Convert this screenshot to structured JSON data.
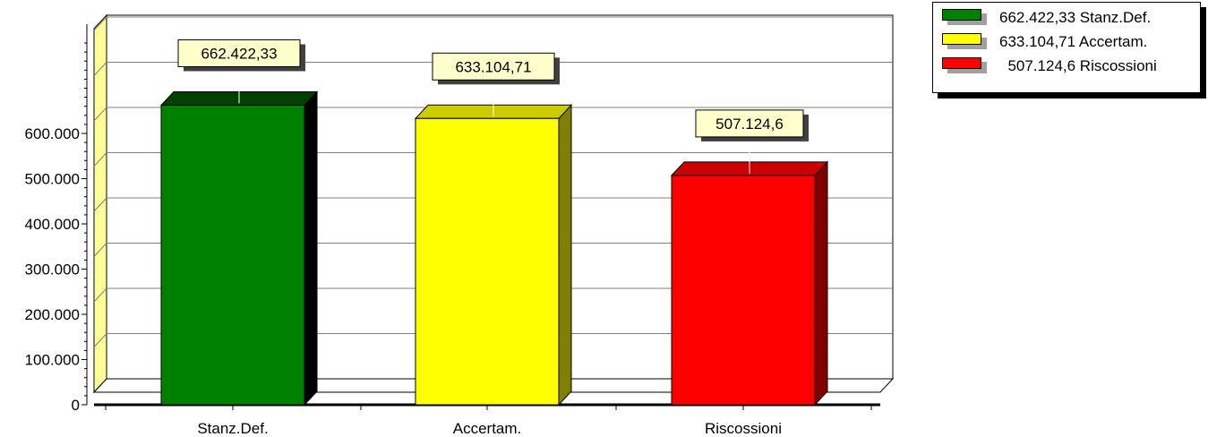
{
  "chart_data": {
    "type": "bar",
    "categories": [
      "Stanz.Def.",
      "Accertam.",
      "Riscossioni"
    ],
    "values": [
      662422.33,
      633104.71,
      507124.6
    ],
    "data_labels": [
      "662.422,33",
      "633.104,71",
      "507.124,6"
    ],
    "colors": [
      "#008000",
      "#ffff00",
      "#ff0000"
    ],
    "y_ticks": [
      "0",
      "100.000",
      "200.000",
      "300.000",
      "400.000",
      "500.000",
      "600.000"
    ],
    "ylim": [
      0,
      800000
    ],
    "grid": true,
    "three_d": true,
    "legend_position": "top-right",
    "legend": [
      {
        "label": "662.422,33 Stanz.Def.",
        "color": "#008000"
      },
      {
        "label": "633.104,71 Accertam.",
        "color": "#ffff00"
      },
      {
        "label": "  507.124,6 Riscossioni",
        "color": "#ff0000"
      }
    ]
  }
}
